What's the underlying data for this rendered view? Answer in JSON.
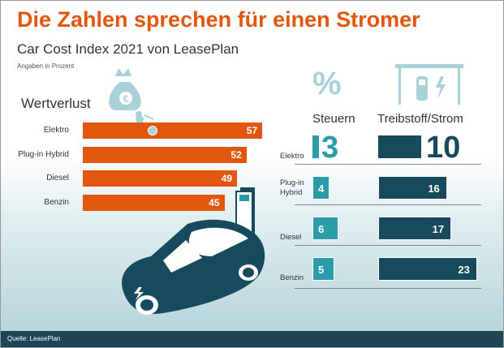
{
  "title": "Die Zahlen sprechen für einen Stromer",
  "subtitle": "Car Cost Index 2021 von LeasePlan",
  "note": "Angaben in Prozent",
  "source": "Quelle: LeasePlan",
  "colors": {
    "orange": "#e2570f",
    "steuern": "#2d9caa",
    "treibstoff": "#164a5c",
    "icon": "#a9d1d8"
  },
  "chart_data": [
    {
      "type": "bar",
      "title": "Wertverlust",
      "categories": [
        "Elektro",
        "Plug-in Hybrid",
        "Diesel",
        "Benzin"
      ],
      "values": [
        57,
        52,
        49,
        45
      ],
      "unit": "%"
    },
    {
      "type": "bar",
      "title": "Steuern",
      "icon": "percent-icon",
      "categories": [
        "Elektro",
        "Plug-in Hybrid",
        "Diesel",
        "Benzin"
      ],
      "values": [
        3,
        4,
        6,
        5
      ],
      "unit": "%"
    },
    {
      "type": "bar",
      "title": "Treibstoff/Strom",
      "icon": "fuel-station-icon",
      "categories": [
        "Elektro",
        "Plug-in Hybrid",
        "Diesel",
        "Benzin"
      ],
      "values": [
        10,
        16,
        17,
        23
      ],
      "unit": "%"
    }
  ],
  "right_categories": [
    "Elektro",
    "Plug-in\nHybrid",
    "Diesel",
    "Benzin"
  ],
  "percent_symbol": "%"
}
